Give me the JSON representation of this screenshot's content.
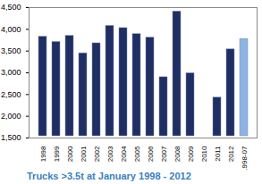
{
  "chart_data": {
    "type": "bar",
    "title": "Trucks >3.5t at January 1998 - 2012",
    "categories": [
      "1998",
      "1999",
      "2000",
      "2001",
      "2002",
      "2003",
      "2004",
      "2005",
      "2006",
      "2007",
      "2008",
      "2009",
      "2010",
      "2011",
      "2012",
      "1998-07"
    ],
    "values": [
      3870,
      3750,
      3890,
      3490,
      3720,
      4120,
      4070,
      3930,
      3850,
      2940,
      4450,
      3030,
      1560,
      2470,
      3580,
      3820
    ],
    "colors": [
      "#1f2e63",
      "#1f2e63",
      "#1f2e63",
      "#1f2e63",
      "#1f2e63",
      "#1f2e63",
      "#1f2e63",
      "#1f2e63",
      "#1f2e63",
      "#1f2e63",
      "#1f2e63",
      "#1f2e63",
      "#1f2e63",
      "#1f2e63",
      "#1f2e63",
      "#8db3e2"
    ],
    "ylim": [
      1500,
      4500
    ],
    "yticks": [
      {
        "value": 1500,
        "label": "1,500"
      },
      {
        "value": 2000,
        "label": "2,000"
      },
      {
        "value": 2500,
        "label": "2,500"
      },
      {
        "value": 3000,
        "label": "3,000"
      },
      {
        "value": 3500,
        "label": "3,500"
      },
      {
        "value": 4000,
        "label": "4,000"
      },
      {
        "value": 4500,
        "label": "4,500"
      }
    ],
    "grid": false
  }
}
